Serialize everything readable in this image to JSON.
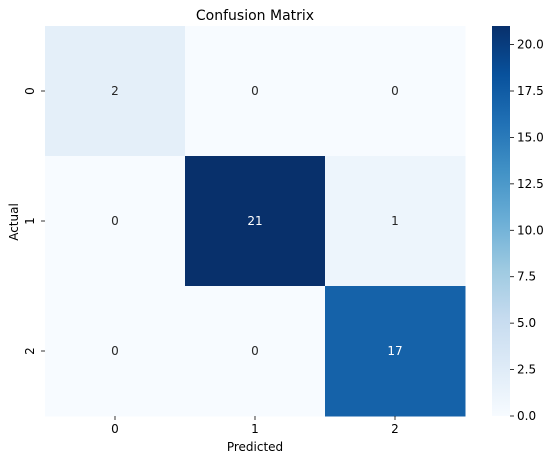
{
  "chart_data": {
    "type": "heatmap",
    "title": "Confusion Matrix",
    "xlabel": "Predicted",
    "ylabel": "Actual",
    "x_categories": [
      "0",
      "1",
      "2"
    ],
    "y_categories": [
      "0",
      "1",
      "2"
    ],
    "values": [
      [
        2,
        0,
        0
      ],
      [
        0,
        21,
        1
      ],
      [
        0,
        0,
        17
      ]
    ],
    "colormap": "Blues",
    "colorbar": {
      "min": 0,
      "max": 21,
      "ticks": [
        "0.0",
        "2.5",
        "5.0",
        "7.5",
        "10.0",
        "12.5",
        "15.0",
        "17.5",
        "20.0"
      ]
    },
    "annotate": true,
    "colors": {
      "zero_cell": "#f7fbff",
      "max_cell": "#08306b",
      "text_light_bg": "#262626",
      "text_dark_bg": "#ffffff"
    }
  }
}
